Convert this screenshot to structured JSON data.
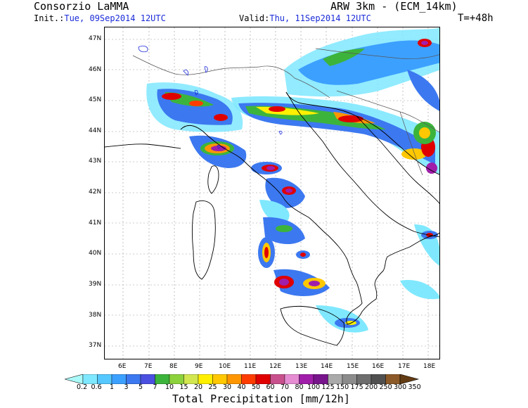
{
  "header": {
    "title_left": "Consorzio LaMMA",
    "title_right": "ARW 3km - (ECM_14km)",
    "init_label": "Init.:",
    "init_value": "Tue, 09Sep2014 12UTC",
    "valid_label": "Valid:",
    "valid_value": "Thu, 11Sep2014 12UTC",
    "lead_time": "T=+48h"
  },
  "map": {
    "lat_labels": [
      "47N",
      "46N",
      "45N",
      "44N",
      "43N",
      "42N",
      "41N",
      "40N",
      "39N",
      "38N",
      "37N"
    ],
    "lon_labels": [
      "6E",
      "7E",
      "8E",
      "9E",
      "10E",
      "11E",
      "12E",
      "13E",
      "14E",
      "15E",
      "16E",
      "17E",
      "18E"
    ],
    "colors": {
      "coastline": "#000000",
      "borders": "#555555",
      "grid": "#9a9a9a",
      "light_precip": "#7fe8ff",
      "moderate_precip": "#3c6cf0",
      "heavy_precip": "#ffd400",
      "very_heavy_precip": "#e01010",
      "extreme_precip": "#a020a0"
    }
  },
  "colorbar": {
    "title": "Total Precipitation [mm/12h]",
    "tick_labels": [
      "0.2",
      "0.6",
      "1",
      "3",
      "5",
      "7",
      "10",
      "15",
      "20",
      "25",
      "30",
      "40",
      "50",
      "60",
      "70",
      "80",
      "100",
      "125",
      "150",
      "175",
      "200",
      "250",
      "300",
      "350"
    ],
    "colors": [
      "#aafafa",
      "#7fe8ff",
      "#55c8ff",
      "#3ca0ff",
      "#3c78f0",
      "#4b50e0",
      "#3cb43c",
      "#8cd23c",
      "#d2e650",
      "#fff000",
      "#ffc800",
      "#ff9600",
      "#ff3c00",
      "#e00000",
      "#c8508c",
      "#e68cd2",
      "#a01eaa",
      "#78148c",
      "#aaaaaa",
      "#8c8c8c",
      "#6e6e6e",
      "#505050",
      "#8c5a28",
      "#643c14"
    ]
  }
}
